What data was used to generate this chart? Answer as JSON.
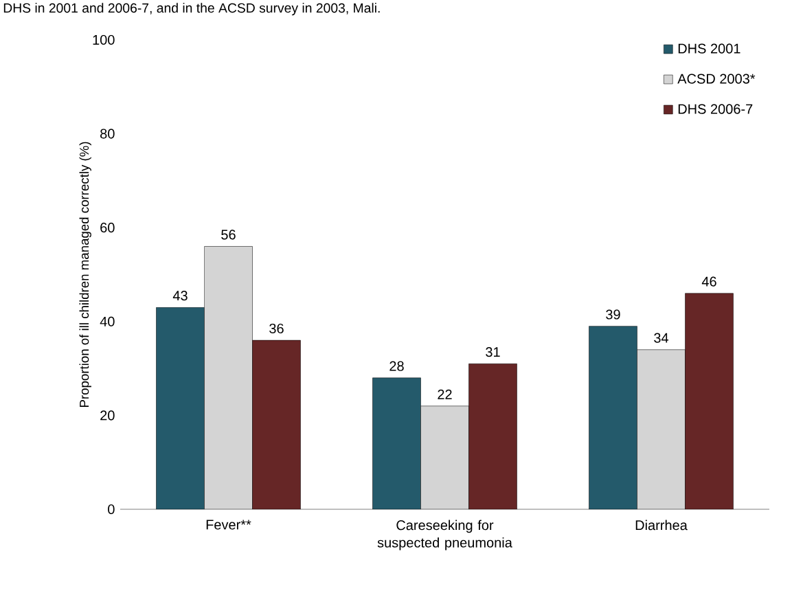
{
  "chart_data": {
    "type": "bar",
    "title": "DHS in 2001 and 2006-7, and in the ACSD survey in 2003, Mali.",
    "ylabel": "Proportion of ill children managed correctly (%)",
    "categories": [
      "Fever**",
      "Careseeking for suspected pneumonia",
      "Diarrhea"
    ],
    "series": [
      {
        "name": "DHS 2001",
        "color": "#245a6b",
        "values": [
          43,
          28,
          39
        ]
      },
      {
        "name": "ACSD 2003*",
        "color": "#d4d4d4",
        "values": [
          56,
          22,
          34
        ]
      },
      {
        "name": "DHS 2006-7",
        "color": "#662626",
        "values": [
          36,
          31,
          46
        ]
      }
    ],
    "ylim": [
      0,
      100
    ],
    "yticks": [
      0,
      20,
      40,
      60,
      80,
      100
    ],
    "data_labels": true,
    "legend": "top right",
    "grid": false
  }
}
